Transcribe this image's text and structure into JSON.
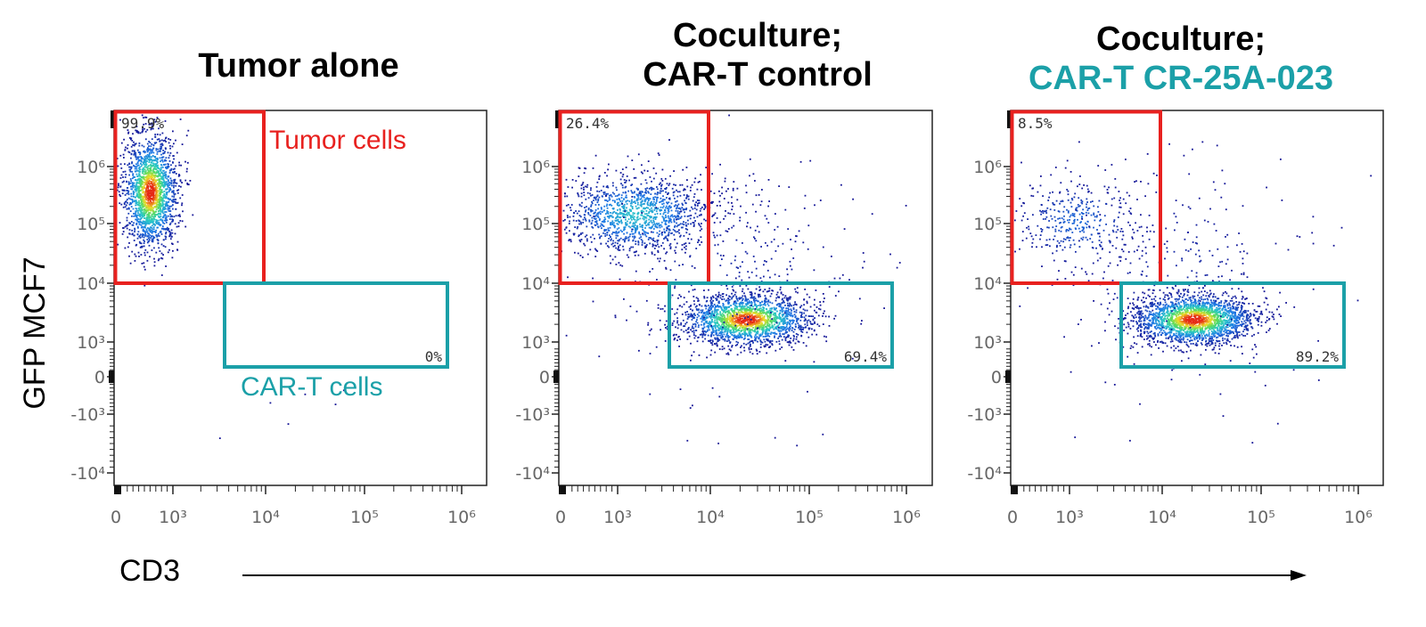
{
  "chart_data": {
    "type": "scatter",
    "y_axis_label": "GFP MCF7",
    "x_axis_label": "CD3",
    "x_ticks": [
      "0",
      "10³",
      "10⁴",
      "10⁵",
      "10⁶"
    ],
    "y_ticks": [
      "10⁶",
      "10⁵",
      "10⁴",
      "10³",
      "0",
      "-10³",
      "-10⁴"
    ],
    "gate_labels": {
      "tumor": "Tumor cells",
      "cart": "CAR-T cells"
    },
    "colors": {
      "tumor_gate": "#e8211f",
      "cart_gate": "#1ba0a8"
    },
    "panels": [
      {
        "title_lines": [
          "Tumor alone"
        ],
        "tumor_pct": "99.9%",
        "cart_pct": "0%",
        "populations": [
          {
            "gate": "tumor",
            "percent": 99.9,
            "center_x": 400,
            "center_log10_y": 5.4
          },
          {
            "gate": "cart",
            "percent": 0
          }
        ]
      },
      {
        "title_lines": [
          "Coculture;",
          "CAR-T control"
        ],
        "tumor_pct": "26.4%",
        "cart_pct": "69.4%",
        "populations": [
          {
            "gate": "tumor",
            "percent": 26.4,
            "center_x": 1000,
            "center_log10_y": 5.15
          },
          {
            "gate": "cart",
            "percent": 69.4,
            "center_x": 20000,
            "center_log10_y": 3.35
          }
        ]
      },
      {
        "title_lines": [
          "Coculture;",
          "CAR-T CR-25A-023"
        ],
        "tumor_pct": "8.5%",
        "cart_pct": "89.2%",
        "populations": [
          {
            "gate": "tumor",
            "percent": 8.5,
            "center_x": 1000,
            "center_log10_y": 5.15
          },
          {
            "gate": "cart",
            "percent": 89.2,
            "center_x": 20000,
            "center_log10_y": 3.35
          }
        ]
      }
    ]
  }
}
